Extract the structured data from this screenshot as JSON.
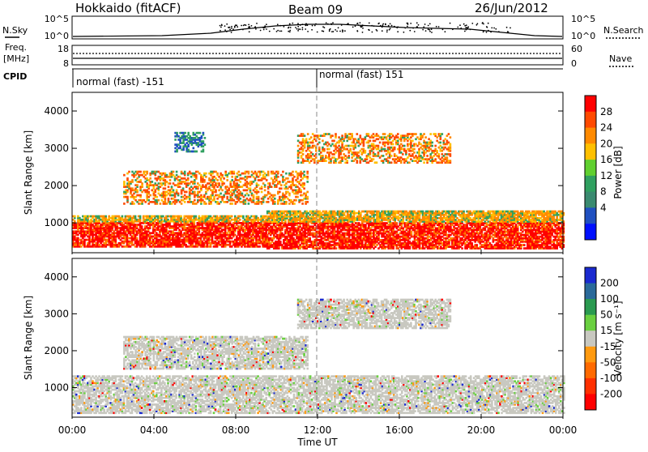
{
  "header": {
    "radar": "Hokkaido (fitACF)",
    "beam": "Beam 09",
    "date": "26/Jun/2012"
  },
  "top_panel": {
    "left_label": "N.Sky",
    "right_label": "N.Search",
    "left_ticks": [
      "10^5",
      "10^0"
    ],
    "right_ticks": [
      "10^5",
      "10^0"
    ]
  },
  "freq_panel": {
    "left_label_line1": "Freq.",
    "left_label_line2": "[MHz]",
    "right_label": "Nave",
    "left_ticks": [
      "18",
      "8"
    ],
    "right_ticks": [
      "60",
      "0"
    ]
  },
  "cpid_panel": {
    "label": "CPID",
    "segments": [
      "normal (fast) -151",
      "normal (fast) 151"
    ]
  },
  "time_axis": {
    "label": "Time UT",
    "ticks": [
      "00:00",
      "04:00",
      "08:00",
      "12:00",
      "16:00",
      "20:00",
      "00:00"
    ]
  },
  "chart_data": [
    {
      "type": "heatmap",
      "title": "Power",
      "xlabel": "Time UT",
      "ylabel": "Slant Range [km]",
      "xlim": [
        0,
        24
      ],
      "ylim": [
        200,
        4500
      ],
      "yticks": [
        "1000",
        "2000",
        "3000",
        "4000"
      ],
      "colorbar": {
        "label": "Power [dB]",
        "ticks": [
          "28",
          "24",
          "20",
          "16",
          "12",
          "8",
          "4"
        ],
        "colors": [
          "#ff0000",
          "#ff4a00",
          "#ff8a00",
          "#ffc000",
          "#60d030",
          "#30a060",
          "#3a8a70",
          "#2050c0",
          "#0010ff"
        ]
      },
      "bands": [
        {
          "t0": 0.0,
          "t1": 9.5,
          "r0": 350,
          "r1": 1200,
          "level": "high"
        },
        {
          "t0": 9.5,
          "t1": 24.0,
          "r0": 300,
          "r1": 1300,
          "level": "high"
        },
        {
          "t0": 2.5,
          "t1": 11.5,
          "r0": 1500,
          "r1": 2400,
          "level": "mid"
        },
        {
          "t0": 11.0,
          "t1": 18.5,
          "r0": 2600,
          "r1": 3400,
          "level": "mid"
        },
        {
          "t0": 5.0,
          "t1": 6.5,
          "r0": 2900,
          "r1": 3400,
          "level": "low"
        }
      ]
    },
    {
      "type": "heatmap",
      "title": "Velocity",
      "xlabel": "Time UT",
      "ylabel": "Slant Range [km]",
      "xlim": [
        0,
        24
      ],
      "ylim": [
        200,
        4500
      ],
      "yticks": [
        "1000",
        "2000",
        "3000",
        "4000"
      ],
      "colorbar": {
        "label": "Velocity [m s⁻¹]",
        "ticks": [
          "200",
          "100",
          "50",
          "15",
          "-15",
          "-50",
          "-100",
          "-200"
        ],
        "colors": [
          "#1a2ad0",
          "#2a6a9a",
          "#2a9a50",
          "#6ad040",
          "#c8c8c0",
          "#ff9a10",
          "#ff6a00",
          "#ff3000",
          "#ff0000"
        ]
      },
      "bands": [
        {
          "t0": 0.0,
          "t1": 24.0,
          "r0": 300,
          "r1": 1300,
          "level": "ground"
        },
        {
          "t0": 2.5,
          "t1": 11.5,
          "r0": 1500,
          "r1": 2400,
          "level": "ground"
        },
        {
          "t0": 11.0,
          "t1": 18.5,
          "r0": 2600,
          "r1": 3400,
          "level": "ground"
        }
      ]
    }
  ]
}
